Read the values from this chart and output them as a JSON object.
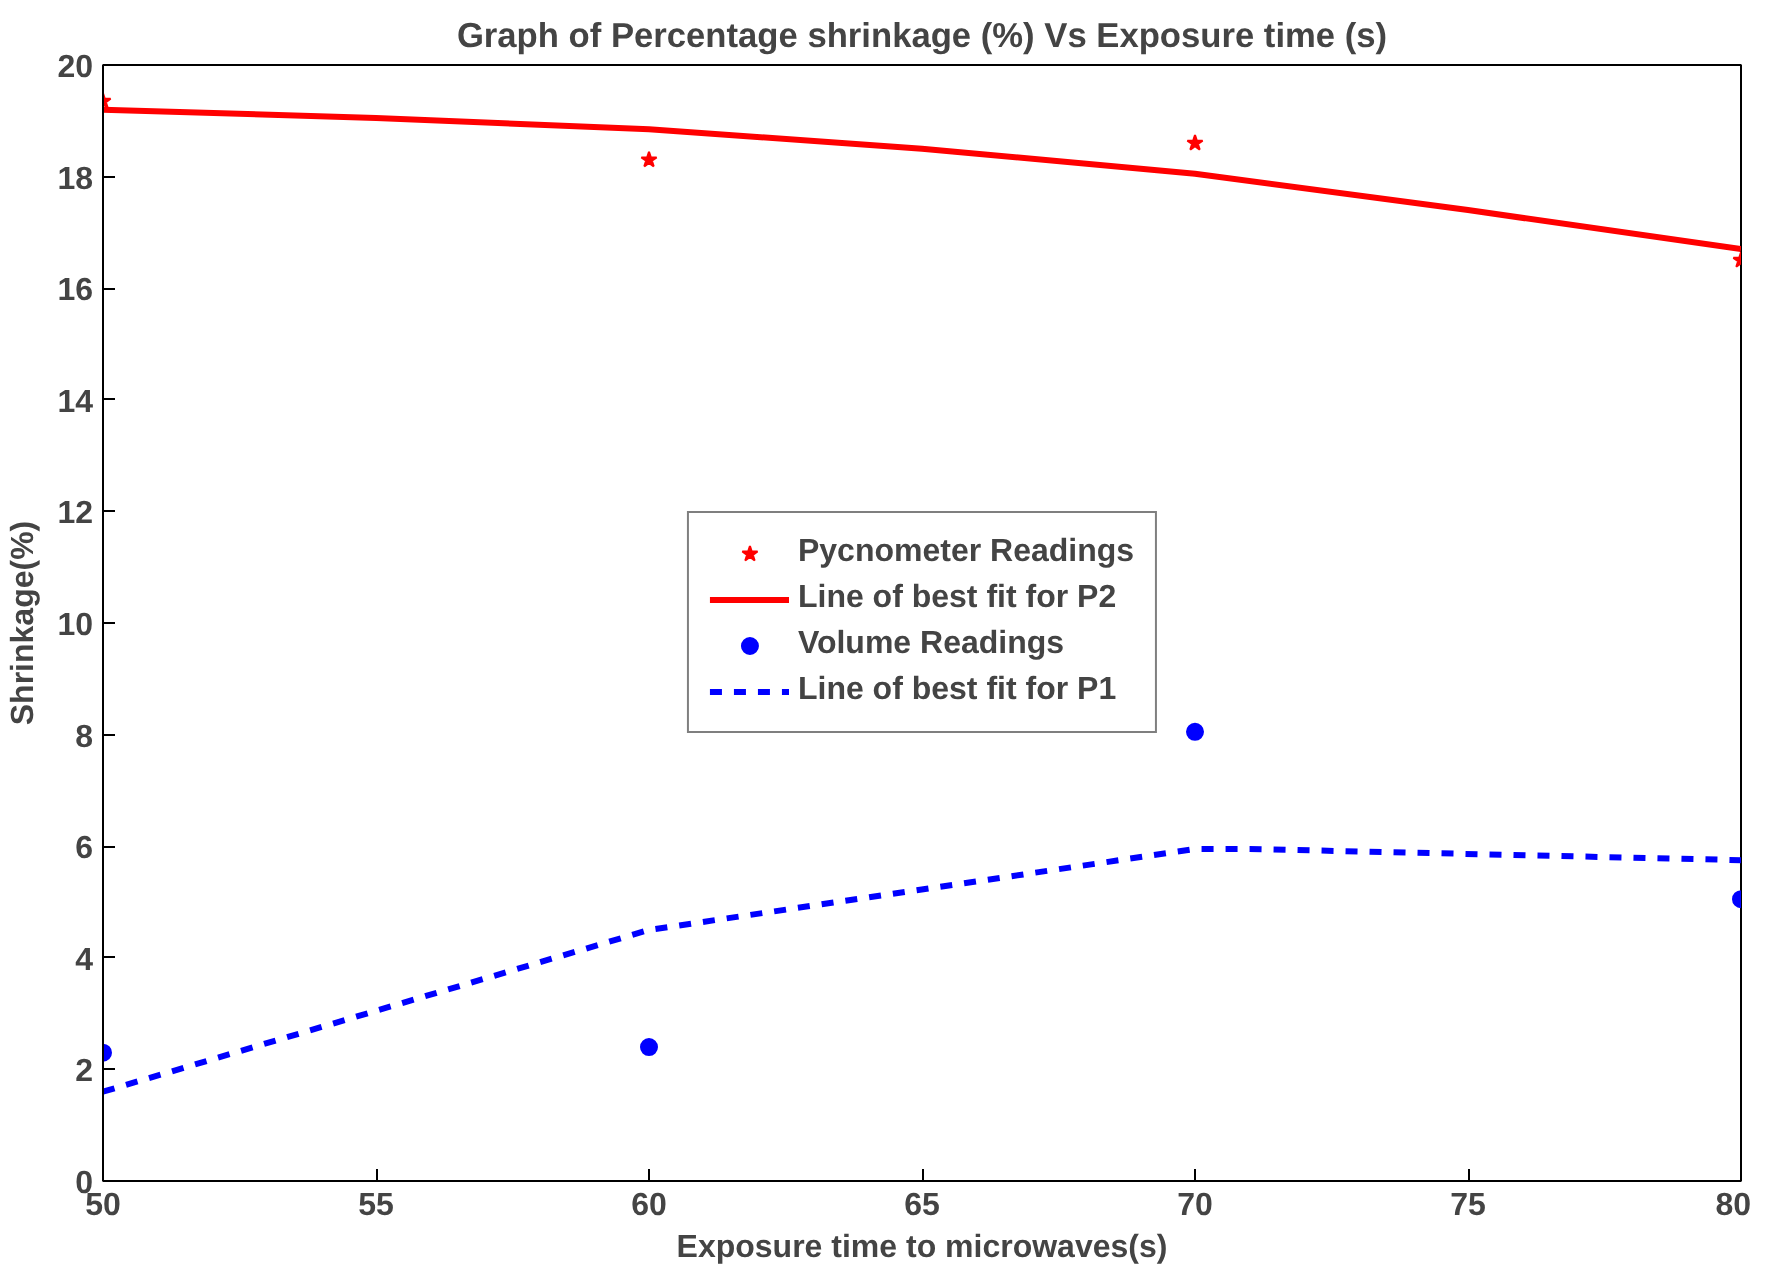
{
  "chart_data": {
    "type": "line",
    "title": "Graph of Percentage shrinkage (%) Vs Exposure time (s)",
    "xlabel": "Exposure time to microwaves(s)",
    "ylabel": "Shrinkage(%)",
    "xlim": [
      50,
      80
    ],
    "ylim": [
      0,
      20
    ],
    "xticks": [
      50,
      55,
      60,
      65,
      70,
      75,
      80
    ],
    "yticks": [
      0,
      2,
      4,
      6,
      8,
      10,
      12,
      14,
      16,
      18,
      20
    ],
    "grid": false,
    "legend": "center",
    "series": [
      {
        "name": "Pycnometer Readings",
        "type": "scatter",
        "marker": "star",
        "color": "#ff0000",
        "x": [
          50,
          60,
          70,
          80
        ],
        "values": [
          19.35,
          18.3,
          18.6,
          16.5
        ]
      },
      {
        "name": "Line of best fit for P2",
        "line_style": "solid",
        "color": "#ff0000",
        "x": [
          50,
          55,
          60,
          65,
          70,
          75,
          80
        ],
        "values": [
          19.2,
          19.05,
          18.85,
          18.5,
          18.05,
          17.4,
          16.7
        ]
      },
      {
        "name": "Volume Readings",
        "type": "scatter",
        "marker": "circle",
        "color": "#0000ff",
        "x": [
          50,
          60,
          70,
          80
        ],
        "values": [
          2.3,
          2.4,
          8.05,
          5.05
        ]
      },
      {
        "name": "Line of best fit for P1",
        "line_style": "dashed",
        "color": "#0000ff",
        "x": [
          50,
          60,
          70,
          71,
          80
        ],
        "values": [
          1.6,
          4.5,
          5.95,
          5.95,
          5.75
        ]
      }
    ]
  }
}
